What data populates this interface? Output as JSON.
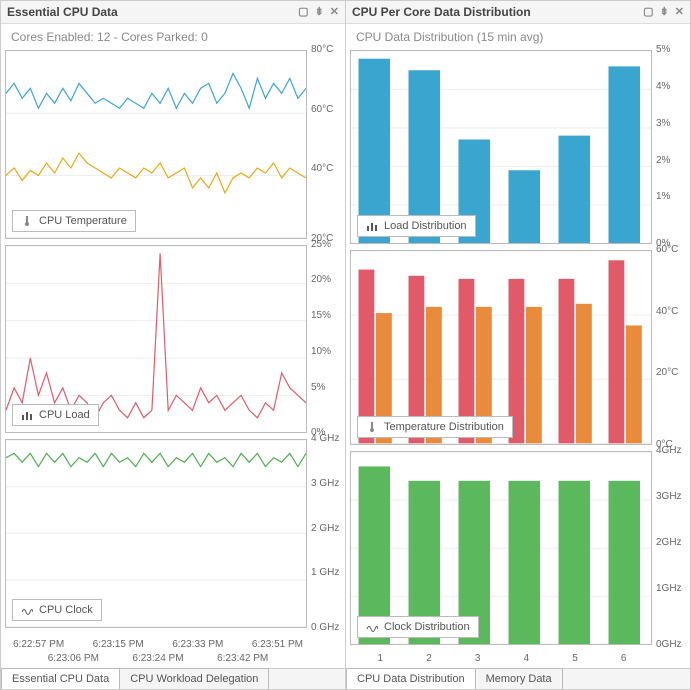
{
  "left_panel": {
    "title": "Essential CPU Data",
    "subtitle": "Cores Enabled: 12 - Cores Parked: 0",
    "xaxis": {
      "row1": [
        "6:22:57 PM",
        "6:23:15 PM",
        "6:23:33 PM",
        "6:23:51 PM"
      ],
      "row2": [
        "6:23:06 PM",
        "6:23:24 PM",
        "6:23:42 PM"
      ]
    },
    "tabs": [
      "Essential CPU Data",
      "CPU Workload Delegation"
    ],
    "active_tab": 0,
    "charts": [
      {
        "legend": "CPU Temperature",
        "icon": "thermo",
        "yticks": [
          "80°C",
          "60°C",
          "40°C",
          "20°C"
        ],
        "ymin": 10,
        "ymax": 85,
        "series": [
          {
            "name": "temp-blue",
            "color": "#3aa6d0",
            "width": 1.2,
            "data": [
              68,
              72,
              66,
              70,
              62,
              68,
              64,
              70,
              65,
              72,
              68,
              64,
              66,
              64,
              62,
              66,
              64,
              62,
              68,
              64,
              70,
              62,
              68,
              64,
              70,
              72,
              64,
              68,
              76,
              70,
              62,
              74,
              66,
              72,
              68,
              74,
              66,
              70
            ]
          },
          {
            "name": "temp-orange",
            "color": "#e6a817",
            "width": 1.2,
            "data": [
              35,
              38,
              33,
              37,
              35,
              40,
              36,
              42,
              38,
              44,
              40,
              38,
              36,
              34,
              38,
              36,
              34,
              38,
              36,
              40,
              34,
              36,
              38,
              30,
              34,
              30,
              36,
              28,
              34,
              36,
              34,
              38,
              36,
              40,
              34,
              38,
              36,
              34
            ]
          }
        ]
      },
      {
        "legend": "CPU Load",
        "icon": "bars",
        "yticks": [
          "25%",
          "20%",
          "15%",
          "10%",
          "5%",
          "0%"
        ],
        "ymin": 0,
        "ymax": 25,
        "series": [
          {
            "name": "load-red",
            "color": "#e05a6a",
            "width": 1.2,
            "data": [
              3,
              6,
              4,
              10,
              5,
              8,
              4,
              6,
              3,
              5,
              4,
              2,
              4,
              5,
              3,
              2,
              4,
              2,
              3,
              24,
              3,
              5,
              4,
              3,
              6,
              4,
              5,
              3,
              4,
              5,
              3,
              2,
              4,
              3,
              8,
              6,
              5,
              4
            ]
          }
        ]
      },
      {
        "legend": "CPU Clock",
        "icon": "wave",
        "yticks": [
          "4 GHz",
          "3 GHz",
          "2 GHz",
          "1 GHz",
          "0 GHz"
        ],
        "ymin": 0,
        "ymax": 4.2,
        "series": [
          {
            "name": "clock-green",
            "color": "#4caf50",
            "width": 1.2,
            "data": [
              3.8,
              3.9,
              3.7,
              3.9,
              3.6,
              3.9,
              3.7,
              3.9,
              3.6,
              3.8,
              3.7,
              3.9,
              3.6,
              3.9,
              3.7,
              3.8,
              3.6,
              3.9,
              3.7,
              3.9,
              3.6,
              3.8,
              3.7,
              3.9,
              3.6,
              3.9,
              3.7,
              3.8,
              3.6,
              3.9,
              3.7,
              3.9,
              3.6,
              3.8,
              3.7,
              3.9,
              3.6,
              3.9
            ]
          }
        ]
      }
    ]
  },
  "right_panel": {
    "title": "CPU Per Core Data Distribution",
    "subtitle": "CPU Data Distribution (15 min avg)",
    "xaxis_categories": [
      "1",
      "2",
      "3",
      "4",
      "5",
      "6"
    ],
    "tabs": [
      "CPU Data Distribution",
      "Memory Data"
    ],
    "active_tab": 0,
    "charts": [
      {
        "legend": "Load Distribution",
        "icon": "bars",
        "yticks": [
          "5%",
          "4%",
          "3%",
          "2%",
          "1%",
          "0%"
        ],
        "ymin": 0,
        "ymax": 5,
        "groups": [
          {
            "color": "#3aa6d0",
            "values": [
              4.8,
              4.5,
              2.7,
              1.9,
              2.8,
              4.6
            ]
          }
        ]
      },
      {
        "legend": "Temperature Distribution",
        "icon": "thermo",
        "yticks": [
          "60°C",
          "40°C",
          "20°C",
          "0°C"
        ],
        "ymin": 0,
        "ymax": 62,
        "groups": [
          {
            "color": "#e05a6a",
            "values": [
              56,
              54,
              53,
              53,
              53,
              59
            ]
          },
          {
            "color": "#e88b3c",
            "values": [
              42,
              44,
              44,
              44,
              45,
              38
            ]
          }
        ]
      },
      {
        "legend": "Clock Distribution",
        "icon": "wave",
        "yticks": [
          "4GHz",
          "3GHz",
          "2GHz",
          "1GHz",
          "0GHz"
        ],
        "ymin": 0,
        "ymax": 4,
        "groups": [
          {
            "color": "#5cb85c",
            "values": [
              3.7,
              3.4,
              3.4,
              3.4,
              3.4,
              3.4
            ]
          }
        ]
      }
    ]
  },
  "colors": {
    "grid": "#eeeeee",
    "border": "#bbbbbb",
    "text": "#555555"
  }
}
